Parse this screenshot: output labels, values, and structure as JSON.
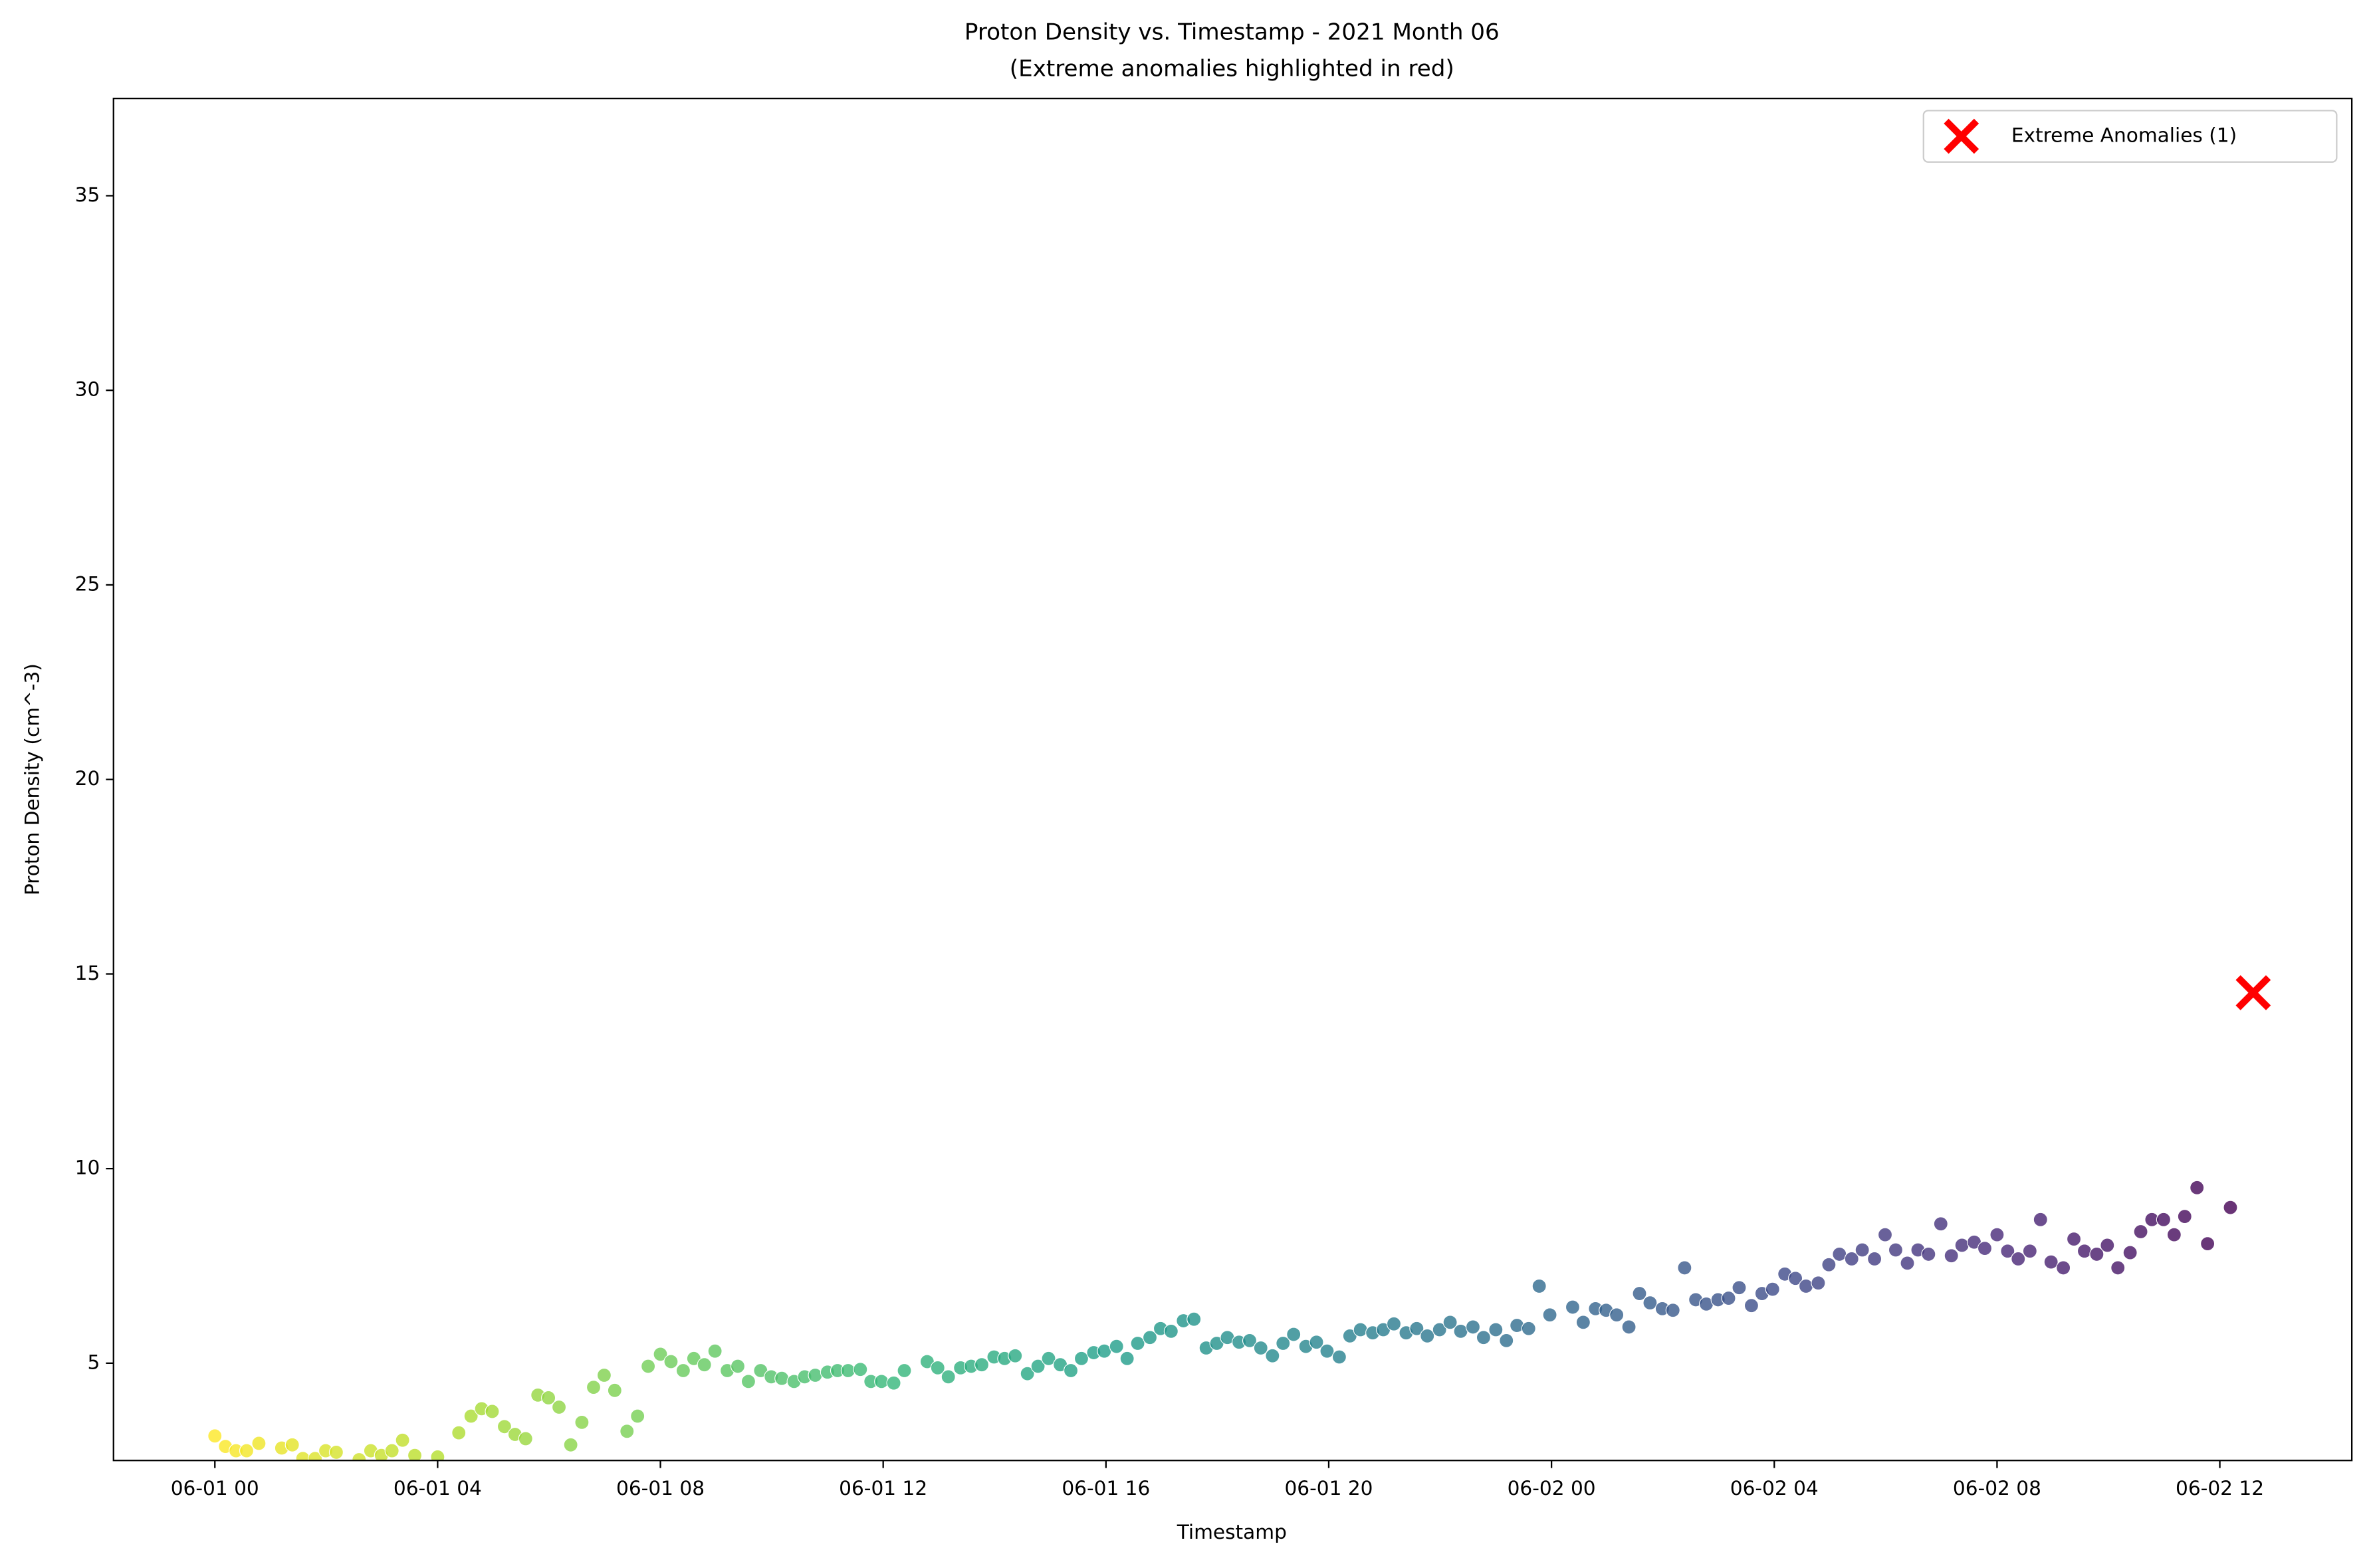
{
  "chart_data": {
    "type": "scatter",
    "title": "Proton Density vs. Timestamp - 2021 Month 06",
    "subtitle": "(Extreme anomalies highlighted in red)",
    "x_label": "Timestamp",
    "y_label": "Proton Density (cm^-3)",
    "xlim": [
      -1.82,
      38.37
    ],
    "ylim": [
      2.5,
      37.5
    ],
    "xticks": [
      {
        "value": 0,
        "label": "06-01 00"
      },
      {
        "value": 4,
        "label": "06-01 04"
      },
      {
        "value": 8,
        "label": "06-01 08"
      },
      {
        "value": 12,
        "label": "06-01 12"
      },
      {
        "value": 16,
        "label": "06-01 16"
      },
      {
        "value": 20,
        "label": "06-01 20"
      },
      {
        "value": 24,
        "label": "06-02 00"
      },
      {
        "value": 28,
        "label": "06-02 04"
      },
      {
        "value": 32,
        "label": "06-02 08"
      },
      {
        "value": 36,
        "label": "06-02 12"
      }
    ],
    "yticks": [
      5,
      10,
      15,
      20,
      25,
      30,
      35
    ],
    "grid": false,
    "legend": "upper right",
    "series": [
      {
        "colormap": "viridis_r",
        "marker": "circle",
        "x": [
          0,
          0.19,
          0.38,
          0.57,
          0.79,
          1.2,
          1.39,
          1.58,
          1.8,
          1.99,
          2.18,
          2.59,
          2.8,
          2.99,
          3.18,
          3.37,
          3.59,
          4.0,
          4.38,
          4.6,
          4.79,
          4.98,
          5.2,
          5.39,
          5.58,
          5.8,
          5.99,
          6.18,
          6.39,
          6.59,
          6.8,
          6.99,
          7.18,
          7.4,
          7.59,
          7.78,
          8.0,
          8.19,
          8.41,
          8.6,
          8.79,
          8.98,
          9.2,
          9.39,
          9.58,
          9.8,
          9.99,
          10.18,
          10.4,
          10.59,
          10.78,
          11.0,
          11.18,
          11.37,
          11.59,
          11.78,
          11.97,
          12.19,
          12.38,
          12.79,
          12.98,
          13.17,
          13.39,
          13.58,
          13.77,
          13.99,
          14.18,
          14.37,
          14.59,
          14.78,
          14.97,
          15.18,
          15.37,
          15.56,
          15.78,
          15.97,
          16.19,
          16.38,
          16.57,
          16.79,
          16.98,
          17.17,
          17.39,
          17.58,
          17.8,
          17.99,
          18.18,
          18.39,
          18.58,
          18.78,
          18.99,
          19.18,
          19.37,
          19.59,
          19.78,
          19.97,
          20.19,
          20.38,
          20.57,
          20.79,
          20.98,
          21.17,
          21.39,
          21.58,
          21.77,
          21.99,
          22.18,
          22.37,
          22.59,
          22.78,
          23.0,
          23.19,
          23.38,
          23.59,
          23.78,
          23.97,
          24.38,
          24.57,
          24.79,
          24.98,
          25.17,
          25.39,
          25.58,
          25.77,
          25.99,
          26.18,
          26.39,
          26.59,
          26.78,
          26.99,
          27.18,
          27.37,
          27.59,
          27.78,
          27.97,
          28.19,
          28.38,
          28.57,
          28.79,
          28.98,
          29.17,
          29.39,
          29.58,
          29.8,
          29.99,
          30.18,
          30.39,
          30.58,
          30.77,
          30.99,
          31.18,
          31.37,
          31.59,
          31.78,
          32.0,
          32.19,
          32.38,
          32.59,
          32.78,
          32.97,
          33.19,
          33.38,
          33.57,
          33.79,
          33.98,
          34.17,
          34.39,
          34.58,
          34.78,
          34.99,
          35.18,
          35.37,
          35.59,
          35.78,
          36.19
        ],
        "values": [
          3.13,
          2.86,
          2.75,
          2.75,
          2.94,
          2.82,
          2.9,
          2.55,
          2.55,
          2.75,
          2.71,
          2.52,
          2.75,
          2.63,
          2.75,
          3.02,
          2.63,
          2.59,
          3.21,
          3.64,
          3.83,
          3.76,
          3.37,
          3.17,
          3.06,
          4.18,
          4.11,
          3.87,
          2.9,
          3.48,
          4.38,
          4.69,
          4.3,
          3.25,
          3.64,
          4.92,
          5.23,
          5.04,
          4.81,
          5.12,
          4.96,
          5.31,
          4.81,
          4.92,
          4.53,
          4.81,
          4.65,
          4.61,
          4.53,
          4.65,
          4.69,
          4.77,
          4.81,
          4.81,
          4.84,
          4.53,
          4.53,
          4.49,
          4.81,
          5.04,
          4.88,
          4.65,
          4.88,
          4.92,
          4.96,
          5.16,
          5.12,
          5.19,
          4.73,
          4.92,
          5.12,
          4.96,
          4.81,
          5.12,
          5.27,
          5.31,
          5.43,
          5.12,
          5.51,
          5.66,
          5.89,
          5.82,
          6.09,
          6.13,
          5.39,
          5.51,
          5.66,
          5.54,
          5.58,
          5.39,
          5.19,
          5.51,
          5.74,
          5.43,
          5.54,
          5.31,
          5.16,
          5.7,
          5.86,
          5.78,
          5.86,
          6.01,
          5.78,
          5.89,
          5.7,
          5.86,
          6.05,
          5.82,
          5.93,
          5.66,
          5.86,
          5.58,
          5.97,
          5.89,
          6.98,
          6.24,
          6.44,
          6.05,
          6.4,
          6.36,
          6.24,
          5.93,
          6.79,
          6.55,
          6.4,
          6.36,
          7.45,
          6.63,
          6.52,
          6.63,
          6.67,
          6.94,
          6.48,
          6.79,
          6.9,
          7.29,
          7.18,
          6.98,
          7.06,
          7.53,
          7.8,
          7.68,
          7.91,
          7.68,
          8.3,
          7.91,
          7.57,
          7.91,
          7.8,
          8.58,
          7.76,
          8.03,
          8.11,
          7.95,
          8.3,
          7.88,
          7.68,
          7.88,
          8.69,
          7.6,
          7.45,
          8.19,
          7.88,
          7.8,
          8.03,
          7.45,
          7.84,
          8.38,
          8.69,
          8.69,
          8.3,
          8.77,
          9.51,
          8.07,
          9.0
        ]
      },
      {
        "name": "Extreme Anomalies (1)",
        "color": "#ff0000",
        "marker": "x",
        "x": [
          36.6
        ],
        "values": [
          14.52
        ]
      }
    ]
  }
}
